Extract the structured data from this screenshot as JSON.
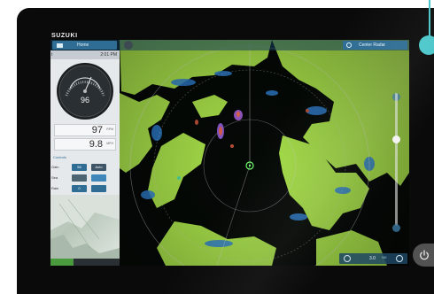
{
  "device": {
    "brand": "SUZUKI"
  },
  "topbar": {
    "home_label": "Home",
    "center_radar_label": "Center Radar"
  },
  "panel": {
    "header_mark": "t",
    "time": "2:01 PM",
    "gauge_value": "96",
    "readout_1": {
      "value": "97",
      "unit": "RPM"
    },
    "readout_2": {
      "value": "9.8",
      "unit": "MPH"
    },
    "section_label": "Controls",
    "controls": [
      {
        "label": "Gain",
        "button_a": "56",
        "button_b": "Auto"
      },
      {
        "label": "Sea",
        "button_a": "",
        "button_b": ""
      },
      {
        "label": "Rain",
        "button_a": "0",
        "button_b": ""
      }
    ]
  },
  "range": {
    "value": "3.0",
    "unit": "NM"
  },
  "colors": {
    "accent": "#2f6d95",
    "radar_land": "#a9e24a",
    "radar_echo": "#2f7fd0",
    "callout": "#49c6c9"
  },
  "icons": [
    "home-icon",
    "gear-icon",
    "center-radar-icon",
    "zoom-out-icon",
    "zoom-in-icon",
    "power-icon"
  ]
}
